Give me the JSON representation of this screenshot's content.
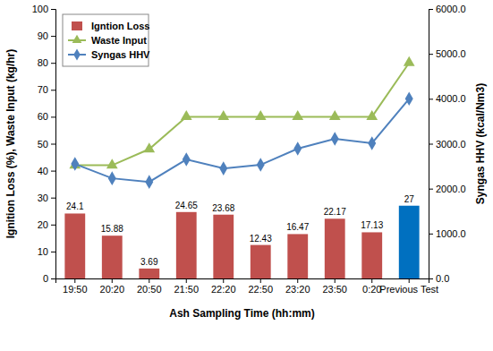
{
  "chart_data": {
    "type": "bar",
    "categories": [
      "19:50",
      "20:20",
      "20:50",
      "21:50",
      "22:20",
      "22:50",
      "23:20",
      "23:50",
      "0:20",
      "Previous Test"
    ],
    "xlabel": "Ash Sampling Time (hh:mm)",
    "ylabel": "Ignition Loss (%), Waste Input (kg/hr)",
    "y2label": "Syngas HHV (kcal/Nm3)",
    "ylim": [
      0,
      100
    ],
    "yticks": [
      0,
      10,
      20,
      30,
      40,
      50,
      60,
      70,
      80,
      90,
      100
    ],
    "y2lim": [
      0,
      6000
    ],
    "y2ticks": [
      {
        "value": 0,
        "label": "0.0"
      },
      {
        "value": 1000,
        "label": "1000.0"
      },
      {
        "value": 2000,
        "label": "2000.0"
      },
      {
        "value": 3000,
        "label": "3000.0"
      },
      {
        "value": 4000,
        "label": "4000.0"
      },
      {
        "value": 5000,
        "label": "5000.0"
      },
      {
        "value": 6000,
        "label": "6000.0"
      }
    ],
    "grid": false,
    "legend": "upper left",
    "series": [
      {
        "name": "Igntion Loss",
        "type": "bar",
        "data_labels": true,
        "colors": [
          "#c0504d",
          "#c0504d",
          "#c0504d",
          "#c0504d",
          "#c0504d",
          "#c0504d",
          "#c0504d",
          "#c0504d",
          "#c0504d",
          "#0070c0"
        ],
        "values": [
          24.1,
          15.88,
          3.69,
          24.65,
          23.68,
          12.43,
          16.47,
          22.17,
          17.13,
          27
        ]
      },
      {
        "name": "Waste Input",
        "type": "line",
        "color": "#9bbb59",
        "marker": "triangle",
        "values": [
          42,
          42,
          48,
          60,
          60,
          60,
          60,
          60,
          60,
          80
        ]
      },
      {
        "name": "Syngas HHV",
        "type": "line",
        "color": "#4f81bd",
        "marker": "diamond",
        "axis": "y2",
        "values": [
          2550,
          2230,
          2150,
          2650,
          2450,
          2530,
          2890,
          3110,
          3010,
          4000
        ]
      }
    ]
  }
}
